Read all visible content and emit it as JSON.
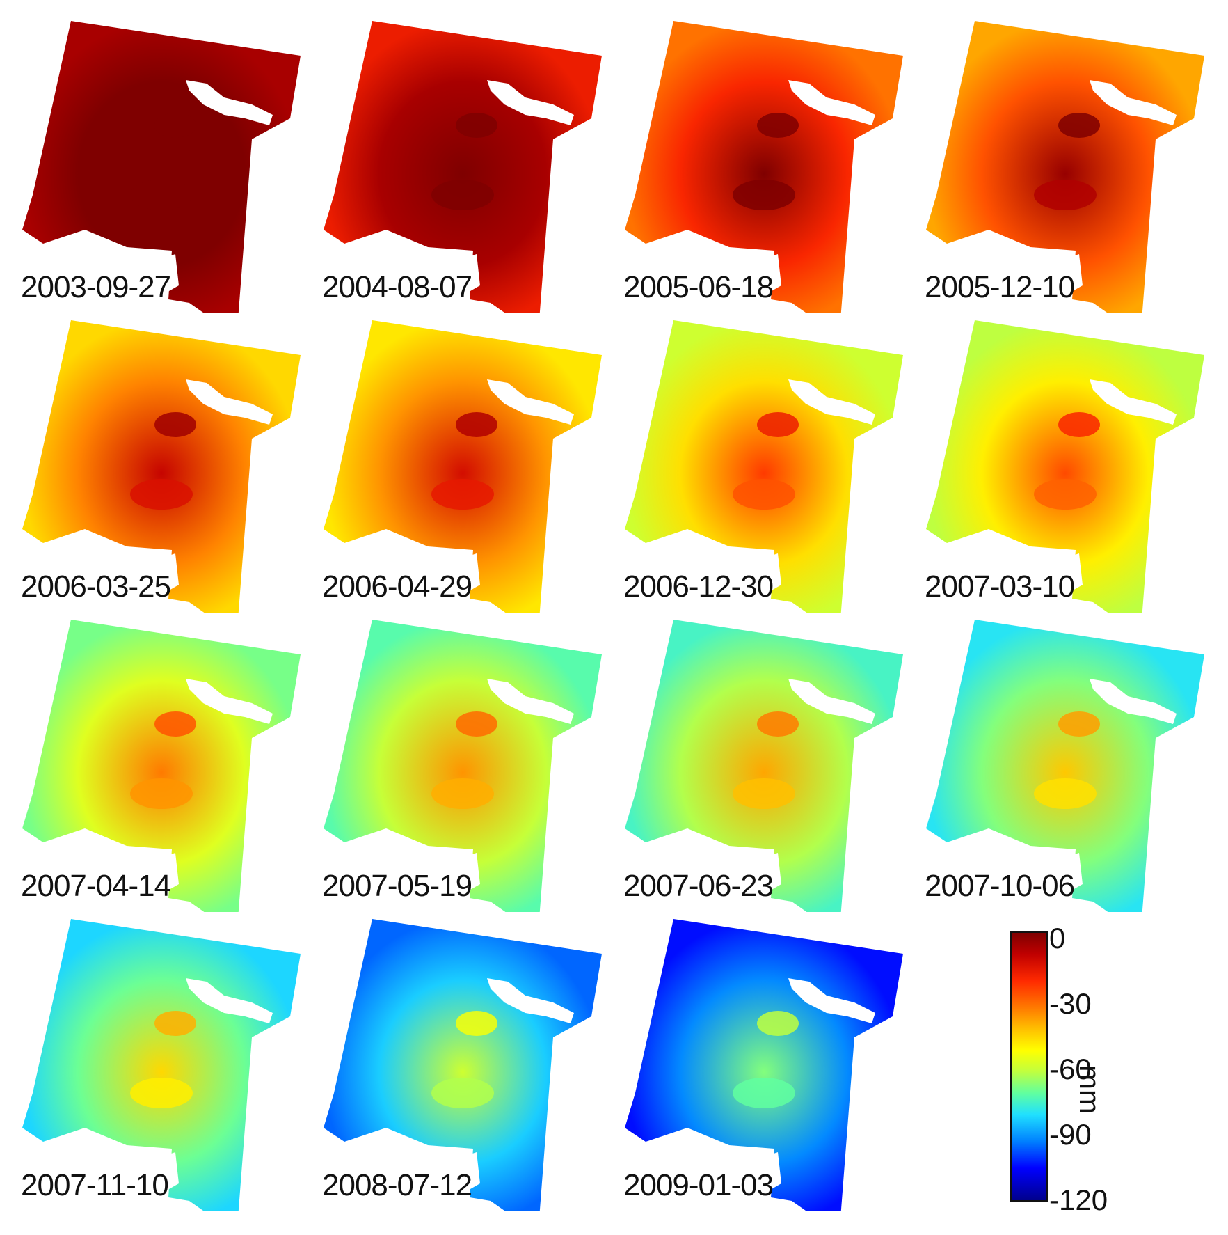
{
  "panels": [
    {
      "date": "2003-09-27",
      "tone": 1.0
    },
    {
      "date": "2004-08-07",
      "tone": 0.9
    },
    {
      "date": "2005-06-18",
      "tone": 0.78
    },
    {
      "date": "2005-12-10",
      "tone": 0.72
    },
    {
      "date": "2006-03-25",
      "tone": 0.66
    },
    {
      "date": "2006-04-29",
      "tone": 0.64
    },
    {
      "date": "2006-12-30",
      "tone": 0.55
    },
    {
      "date": "2007-03-10",
      "tone": 0.53
    },
    {
      "date": "2007-04-14",
      "tone": 0.47
    },
    {
      "date": "2007-05-19",
      "tone": 0.44
    },
    {
      "date": "2007-06-23",
      "tone": 0.42
    },
    {
      "date": "2007-10-06",
      "tone": 0.38
    },
    {
      "date": "2007-11-10",
      "tone": 0.36
    },
    {
      "date": "2008-07-12",
      "tone": 0.25
    },
    {
      "date": "2009-01-03",
      "tone": 0.18
    }
  ],
  "colorbar": {
    "unit": "mm",
    "ticks": [
      "0",
      "-30",
      "-60",
      "-90",
      "-120"
    ],
    "colors": [
      "#7f0000",
      "#ff2a00",
      "#ffff00",
      "#20e0ff",
      "#00008c"
    ]
  }
}
